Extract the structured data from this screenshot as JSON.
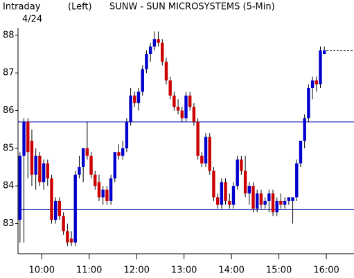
{
  "chart_data": {
    "type": "candlestick",
    "label": "Intraday",
    "date": "4/24",
    "axis_side": "(Left)",
    "title": "SUNW - SUN MICROSYSTEMS (5-Min)",
    "up_color": "#0000cc",
    "down_color": "#cc0000",
    "x": [
      570,
      575,
      580,
      585,
      590,
      595,
      600,
      605,
      610,
      615,
      620,
      625,
      630,
      635,
      640,
      645,
      650,
      655,
      660,
      665,
      670,
      675,
      680,
      685,
      690,
      695,
      700,
      705,
      710,
      715,
      720,
      725,
      730,
      735,
      740,
      745,
      750,
      755,
      760,
      765,
      770,
      775,
      780,
      785,
      790,
      795,
      800,
      805,
      810,
      815,
      820,
      825,
      830,
      835,
      840,
      845,
      850,
      855,
      860,
      865,
      870,
      875,
      880,
      885,
      890,
      895,
      900,
      905,
      910,
      915,
      920,
      925,
      930,
      935,
      940,
      945,
      950,
      955
    ],
    "open": [
      83.1,
      84.8,
      85.7,
      85.2,
      84.3,
      84.8,
      84.1,
      84.6,
      84.2,
      83.1,
      83.6,
      83.2,
      82.8,
      82.6,
      82.5,
      84.3,
      84.5,
      85.0,
      84.8,
      84.3,
      84.1,
      83.7,
      83.9,
      83.6,
      84.2,
      84.9,
      84.8,
      85.0,
      85.7,
      86.4,
      86.2,
      86.5,
      87.1,
      87.5,
      87.7,
      87.9,
      87.8,
      87.3,
      86.8,
      86.4,
      86.1,
      86.0,
      85.8,
      86.4,
      86.1,
      85.7,
      84.8,
      84.6,
      85.3,
      84.4,
      83.7,
      83.5,
      84.1,
      83.6,
      83.5,
      84.0,
      84.7,
      84.4,
      83.8,
      84.0,
      83.4,
      83.8,
      83.5,
      83.6,
      83.8,
      83.3,
      83.6,
      83.5,
      83.6,
      83.6,
      83.7,
      84.6,
      85.2,
      85.8,
      86.6,
      86.8,
      86.7,
      87.5
    ],
    "high": [
      84.9,
      85.8,
      85.8,
      85.5,
      85.0,
      84.9,
      84.7,
      84.7,
      84.3,
      83.7,
      83.7,
      83.3,
      83.0,
      82.8,
      84.4,
      84.8,
      85.0,
      85.7,
      84.9,
      84.4,
      84.3,
      84.0,
      84.0,
      84.3,
      84.9,
      85.1,
      85.2,
      85.8,
      86.6,
      86.5,
      86.6,
      87.2,
      87.6,
      87.8,
      88.1,
      88.1,
      87.9,
      87.4,
      86.9,
      86.5,
      86.3,
      86.1,
      86.5,
      86.5,
      86.2,
      85.8,
      84.9,
      85.4,
      85.4,
      84.5,
      83.8,
      84.2,
      84.2,
      83.8,
      84.1,
      84.8,
      84.8,
      84.8,
      84.1,
      84.1,
      83.9,
      83.9,
      83.7,
      83.9,
      83.9,
      83.7,
      83.8,
      83.7,
      83.7,
      83.7,
      84.7,
      85.2,
      85.9,
      86.7,
      86.9,
      86.9,
      87.7,
      87.7
    ],
    "low": [
      82.5,
      82.5,
      84.2,
      84.0,
      83.9,
      84.0,
      83.9,
      84.0,
      83.0,
      83.0,
      83.1,
      82.7,
      82.4,
      82.4,
      82.4,
      84.2,
      84.1,
      84.7,
      84.2,
      83.9,
      83.6,
      83.5,
      83.5,
      83.5,
      84.1,
      84.7,
      84.7,
      84.9,
      85.6,
      86.1,
      86.0,
      86.4,
      87.0,
      87.3,
      87.6,
      87.7,
      87.2,
      86.7,
      86.3,
      86.0,
      85.9,
      85.7,
      85.7,
      86.0,
      85.6,
      84.7,
      84.5,
      84.5,
      84.3,
      83.6,
      83.4,
      83.4,
      83.5,
      83.4,
      83.4,
      83.9,
      84.3,
      83.7,
      83.5,
      83.3,
      83.3,
      83.4,
      83.4,
      83.3,
      83.2,
      83.2,
      83.4,
      83.4,
      83.5,
      83.0,
      83.6,
      84.5,
      85.0,
      85.7,
      86.3,
      86.5,
      86.6,
      87.5
    ],
    "close": [
      84.8,
      85.7,
      84.9,
      84.3,
      84.8,
      84.1,
      84.6,
      84.2,
      83.1,
      83.6,
      83.2,
      82.8,
      82.5,
      82.5,
      84.3,
      84.5,
      85.0,
      84.8,
      84.3,
      84.0,
      83.7,
      83.9,
      83.6,
      84.2,
      84.9,
      84.8,
      85.0,
      85.7,
      86.4,
      86.2,
      86.5,
      87.1,
      87.5,
      87.7,
      87.9,
      87.8,
      87.3,
      86.8,
      86.4,
      86.1,
      86.0,
      85.8,
      86.4,
      86.1,
      85.7,
      84.8,
      84.6,
      85.3,
      84.4,
      83.7,
      83.5,
      84.1,
      83.6,
      83.5,
      84.0,
      84.7,
      84.4,
      83.8,
      84.0,
      83.4,
      83.8,
      83.5,
      83.6,
      83.8,
      83.3,
      83.6,
      83.5,
      83.6,
      83.7,
      83.7,
      84.6,
      85.2,
      85.8,
      86.6,
      86.8,
      86.7,
      87.6,
      87.6
    ],
    "xlim": [
      570,
      995
    ],
    "xticks": [
      {
        "value": 600,
        "label": "10:00"
      },
      {
        "value": 660,
        "label": "11:00"
      },
      {
        "value": 720,
        "label": "12:00"
      },
      {
        "value": 780,
        "label": "13:00"
      },
      {
        "value": 840,
        "label": "14:00"
      },
      {
        "value": 900,
        "label": "15:00"
      },
      {
        "value": 960,
        "label": "16:00"
      }
    ],
    "ylim": [
      82.2,
      88.2
    ],
    "yticks": [
      83,
      84,
      85,
      86,
      87,
      88
    ],
    "reference_lines": [
      85.7,
      83.37
    ],
    "reference_color": "#0000aa",
    "last_price": 87.6
  }
}
